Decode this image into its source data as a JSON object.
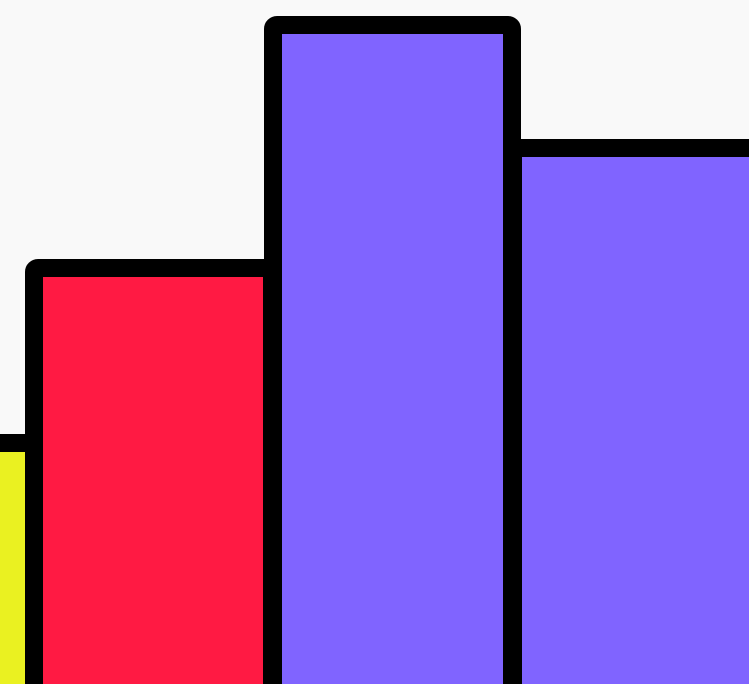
{
  "scene": {
    "background": "#f9f9f9",
    "outline_color": "#000000",
    "blocks": [
      {
        "name": "block-yellow",
        "color": "#eaf121"
      },
      {
        "name": "block-red",
        "color": "#ff1a43"
      },
      {
        "name": "block-purple-tall",
        "color": "#8064ff"
      },
      {
        "name": "block-purple-right",
        "color": "#8064ff"
      }
    ]
  }
}
